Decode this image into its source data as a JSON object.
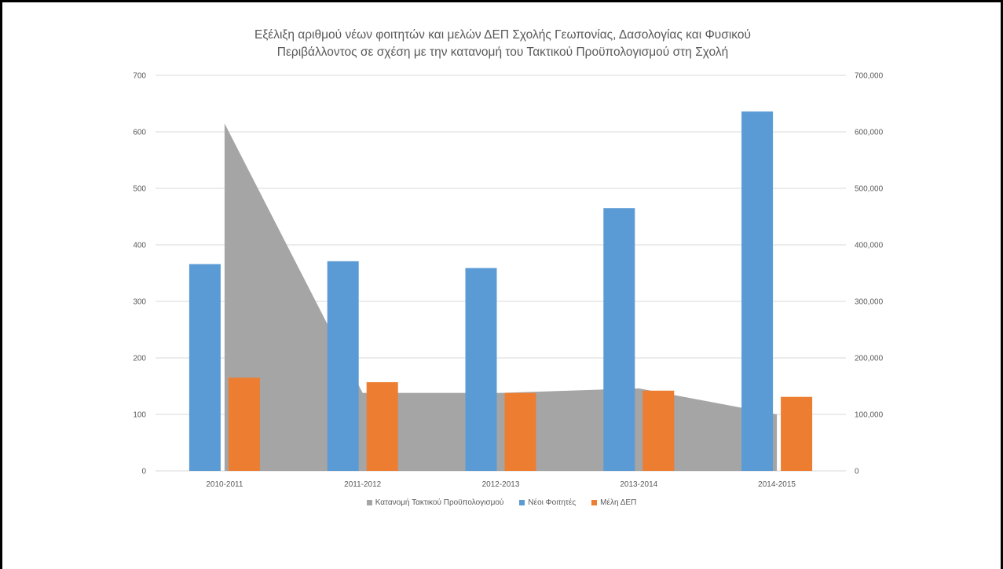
{
  "chart_data": {
    "type": "bar",
    "title_line1": "Εξέλιξη αριθμού νέων φοιτητών και μελών ΔΕΠ Σχολής Γεωπονίας, Δασολογίας και Φυσικού",
    "title_line2": "Περιβάλλοντος σε σχέση με την κατανομή του Τακτικού Προϋπολογισμού στη Σχολή",
    "categories": [
      "2010-2011",
      "2011-2012",
      "2012-2013",
      "2013-2014",
      "2014-2015"
    ],
    "left_axis": {
      "ylim": [
        0,
        700
      ],
      "ticks": [
        "0",
        "100",
        "200",
        "300",
        "400",
        "500",
        "600",
        "700"
      ]
    },
    "right_axis": {
      "ylim": [
        0,
        700000
      ],
      "ticks": [
        "0",
        "100,000",
        "200,000",
        "300,000",
        "400,000",
        "500,000",
        "600,000",
        "700,000"
      ]
    },
    "series": [
      {
        "name": "Κατανομή Τακτικού Προϋπολογισμού",
        "chart_type": "area",
        "axis": "right",
        "color": "#a5a5a5",
        "values": [
          615000,
          138000,
          138000,
          146000,
          100000
        ]
      },
      {
        "name": "Νέοι Φοιτητές",
        "chart_type": "bar",
        "axis": "left",
        "color": "#5b9bd5",
        "values": [
          366,
          371,
          359,
          465,
          636
        ]
      },
      {
        "name": "Μέλη ΔΕΠ",
        "chart_type": "bar",
        "axis": "left",
        "color": "#ed7d31",
        "values": [
          165,
          157,
          138,
          142,
          131
        ]
      }
    ],
    "grid": true,
    "legend_position": "bottom"
  }
}
